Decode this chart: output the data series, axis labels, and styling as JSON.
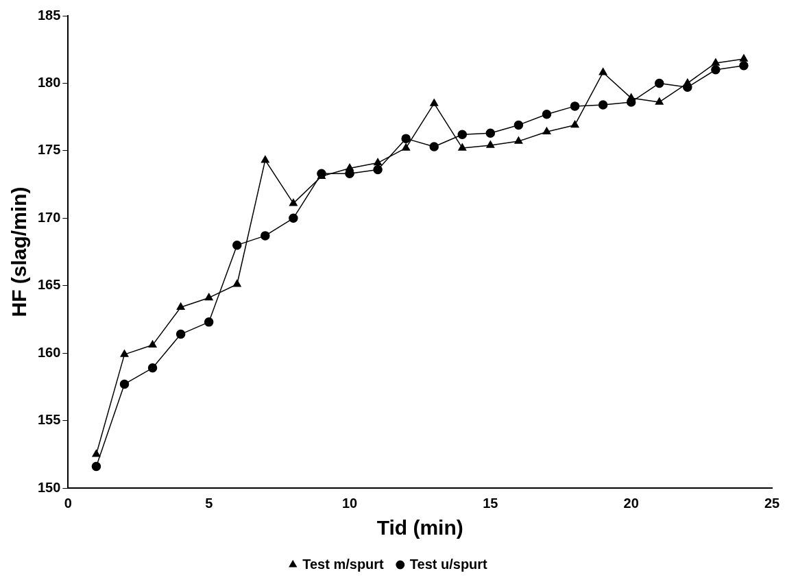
{
  "chart_data": {
    "type": "line",
    "xlabel": "Tid (min)",
    "ylabel": "HF (slag/min)",
    "xlim": [
      0,
      25
    ],
    "xticks": [
      0,
      5,
      10,
      15,
      20,
      25
    ],
    "ylim": [
      150,
      185
    ],
    "yticks": [
      150,
      155,
      160,
      165,
      170,
      175,
      180,
      185
    ],
    "grid": false,
    "legend": "bottom",
    "line_style": "solid",
    "x": [
      1,
      2,
      3,
      4,
      5,
      6,
      7,
      8,
      9,
      10,
      11,
      12,
      13,
      14,
      15,
      16,
      17,
      18,
      19,
      20,
      21,
      22,
      23,
      24
    ],
    "series": [
      {
        "name": "Test u/spurt",
        "color": "#000000",
        "marker": "circle",
        "values": [
          151.6,
          157.7,
          158.9,
          161.4,
          162.3,
          168.0,
          168.7,
          170.0,
          173.3,
          173.3,
          173.6,
          175.9,
          175.3,
          176.2,
          176.3,
          176.9,
          177.7,
          178.3,
          178.4,
          178.6,
          180.0,
          179.7,
          181.0,
          181.3
        ]
      },
      {
        "name": "Test m/spurt",
        "color": "#000000",
        "marker": "triangle",
        "values": [
          152.5,
          159.9,
          160.6,
          163.4,
          164.1,
          165.1,
          174.3,
          171.1,
          173.1,
          173.7,
          174.1,
          175.2,
          178.5,
          175.2,
          175.4,
          175.7,
          176.4,
          176.9,
          180.8,
          178.9,
          178.6,
          180.0,
          181.5,
          181.8
        ]
      }
    ]
  }
}
